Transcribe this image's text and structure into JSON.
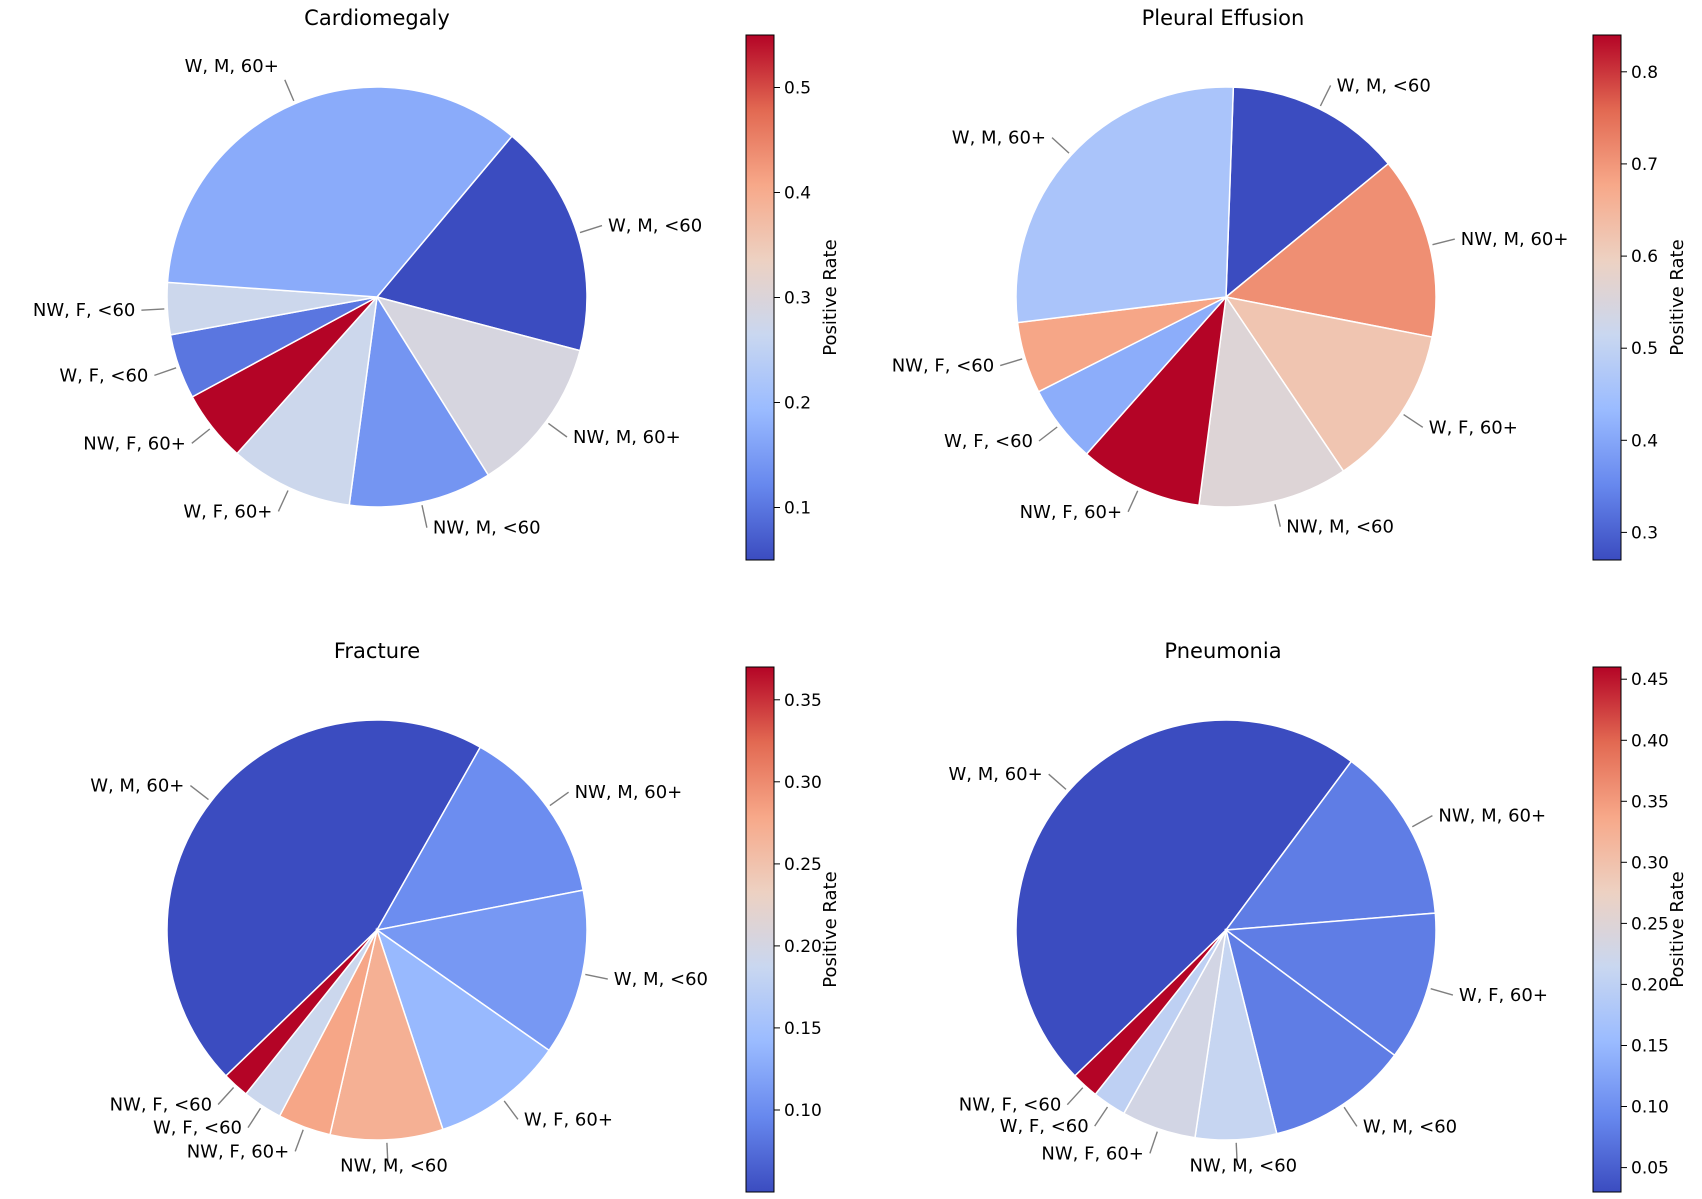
{
  "colormap": [
    "#3b4cc0",
    "#6788ee",
    "#9abbff",
    "#c9d7f0",
    "#edd1c2",
    "#f7a889",
    "#e26952",
    "#b40426"
  ],
  "chart_data": [
    {
      "type": "pie",
      "title": "Cardiomegaly",
      "colorbar": {
        "label": "Positive Rate",
        "range": [
          0.05,
          0.55
        ],
        "ticks": [
          0.1,
          0.2,
          0.3,
          0.4,
          0.5
        ],
        "tick_labels": [
          "0.1",
          "0.2",
          "0.3",
          "0.4",
          "0.5"
        ]
      },
      "slices": [
        {
          "label": "W, M, <60",
          "share": 0.18,
          "rate": 0.05
        },
        {
          "label": "NW, M, 60+",
          "share": 0.12,
          "rate": 0.29
        },
        {
          "label": "NW, M, <60",
          "share": 0.11,
          "rate": 0.14
        },
        {
          "label": "W, F, 60+",
          "share": 0.095,
          "rate": 0.27
        },
        {
          "label": "NW, F, 60+",
          "share": 0.055,
          "rate": 0.55
        },
        {
          "label": "W, F, <60",
          "share": 0.05,
          "rate": 0.1
        },
        {
          "label": "NW, F, <60",
          "share": 0.04,
          "rate": 0.27
        },
        {
          "label": "W, M, 60+",
          "share": 0.35,
          "rate": 0.17
        }
      ]
    },
    {
      "type": "pie",
      "title": "Pleural Effusion",
      "colorbar": {
        "label": "Positive Rate",
        "range": [
          0.27,
          0.84
        ],
        "ticks": [
          0.3,
          0.4,
          0.5,
          0.6,
          0.7,
          0.8
        ],
        "tick_labels": [
          "0.3",
          "0.4",
          "0.5",
          "0.6",
          "0.7",
          "0.8"
        ]
      },
      "slices": [
        {
          "label": "W, M, <60",
          "share": 0.135,
          "rate": 0.27
        },
        {
          "label": "NW, M, 60+",
          "share": 0.14,
          "rate": 0.71
        },
        {
          "label": "W, F, 60+",
          "share": 0.125,
          "rate": 0.62
        },
        {
          "label": "NW, M, <60",
          "share": 0.115,
          "rate": 0.56
        },
        {
          "label": "NW, F, 60+",
          "share": 0.095,
          "rate": 0.84
        },
        {
          "label": "W, F, <60",
          "share": 0.06,
          "rate": 0.41
        },
        {
          "label": "NW, F, <60",
          "share": 0.055,
          "rate": 0.68
        },
        {
          "label": "W, M, 60+",
          "share": 0.275,
          "rate": 0.46
        }
      ]
    },
    {
      "type": "pie",
      "title": "Fracture",
      "colorbar": {
        "label": "Positive Rate",
        "range": [
          0.05,
          0.37
        ],
        "ticks": [
          0.1,
          0.15,
          0.2,
          0.25,
          0.3,
          0.35
        ],
        "tick_labels": [
          "0.10",
          "0.15",
          "0.20",
          "0.25",
          "0.30",
          "0.35"
        ]
      },
      "slices": [
        {
          "label": "W, M, 60+",
          "share": 0.445,
          "rate": 0.05
        },
        {
          "label": "NW, M, 60+",
          "share": 0.135,
          "rate": 0.1
        },
        {
          "label": "W, M, <60",
          "share": 0.125,
          "rate": 0.11
        },
        {
          "label": "W, F, 60+",
          "share": 0.1,
          "rate": 0.14
        },
        {
          "label": "NW, M, <60",
          "share": 0.085,
          "rate": 0.27
        },
        {
          "label": "NW, F, 60+",
          "share": 0.04,
          "rate": 0.28
        },
        {
          "label": "W, F, <60",
          "share": 0.03,
          "rate": 0.19
        },
        {
          "label": "NW, F, <60",
          "share": 0.02,
          "rate": 0.37
        }
      ]
    },
    {
      "type": "pie",
      "title": "Pneumonia",
      "colorbar": {
        "label": "Positive Rate",
        "range": [
          0.03,
          0.46
        ],
        "ticks": [
          0.05,
          0.1,
          0.15,
          0.2,
          0.25,
          0.3,
          0.35,
          0.4,
          0.45
        ],
        "tick_labels": [
          "0.05",
          "0.10",
          "0.15",
          "0.20",
          "0.25",
          "0.30",
          "0.35",
          "0.40",
          "0.45"
        ]
      },
      "slices": [
        {
          "label": "W, M, 60+",
          "share": 0.455,
          "rate": 0.03
        },
        {
          "label": "NW, M, 60+",
          "share": 0.13,
          "rate": 0.08
        },
        {
          "label": "W, F, 60+",
          "share": 0.11,
          "rate": 0.08
        },
        {
          "label": "W, M, <60",
          "share": 0.105,
          "rate": 0.08
        },
        {
          "label": "NW, M, <60",
          "share": 0.06,
          "rate": 0.21
        },
        {
          "label": "NW, F, 60+",
          "share": 0.055,
          "rate": 0.23
        },
        {
          "label": "W, F, <60",
          "share": 0.025,
          "rate": 0.2
        },
        {
          "label": "NW, F, <60",
          "share": 0.02,
          "rate": 0.46
        }
      ]
    }
  ]
}
